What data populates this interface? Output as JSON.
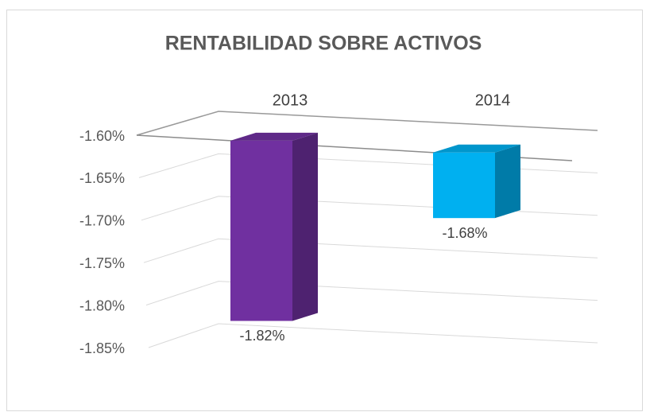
{
  "chart_data": {
    "type": "bar3d",
    "title": "RENTABILIDAD SOBRE ACTIVOS",
    "categories": [
      "2013",
      "2014"
    ],
    "values": [
      -1.82,
      -1.68
    ],
    "value_labels": [
      "-1.82%",
      "-1.68%"
    ],
    "colors": [
      "#7030a0",
      "#00b0f0"
    ],
    "ylim": [
      -1.85,
      -1.6
    ],
    "yticks": [
      {
        "value": -1.6,
        "label": "-1.60%"
      },
      {
        "value": -1.65,
        "label": "-1.65%"
      },
      {
        "value": -1.7,
        "label": "-1.70%"
      },
      {
        "value": -1.75,
        "label": "-1.75%"
      },
      {
        "value": -1.8,
        "label": "-1.80%"
      },
      {
        "value": -1.85,
        "label": "-1.85%"
      }
    ],
    "grid": true
  }
}
